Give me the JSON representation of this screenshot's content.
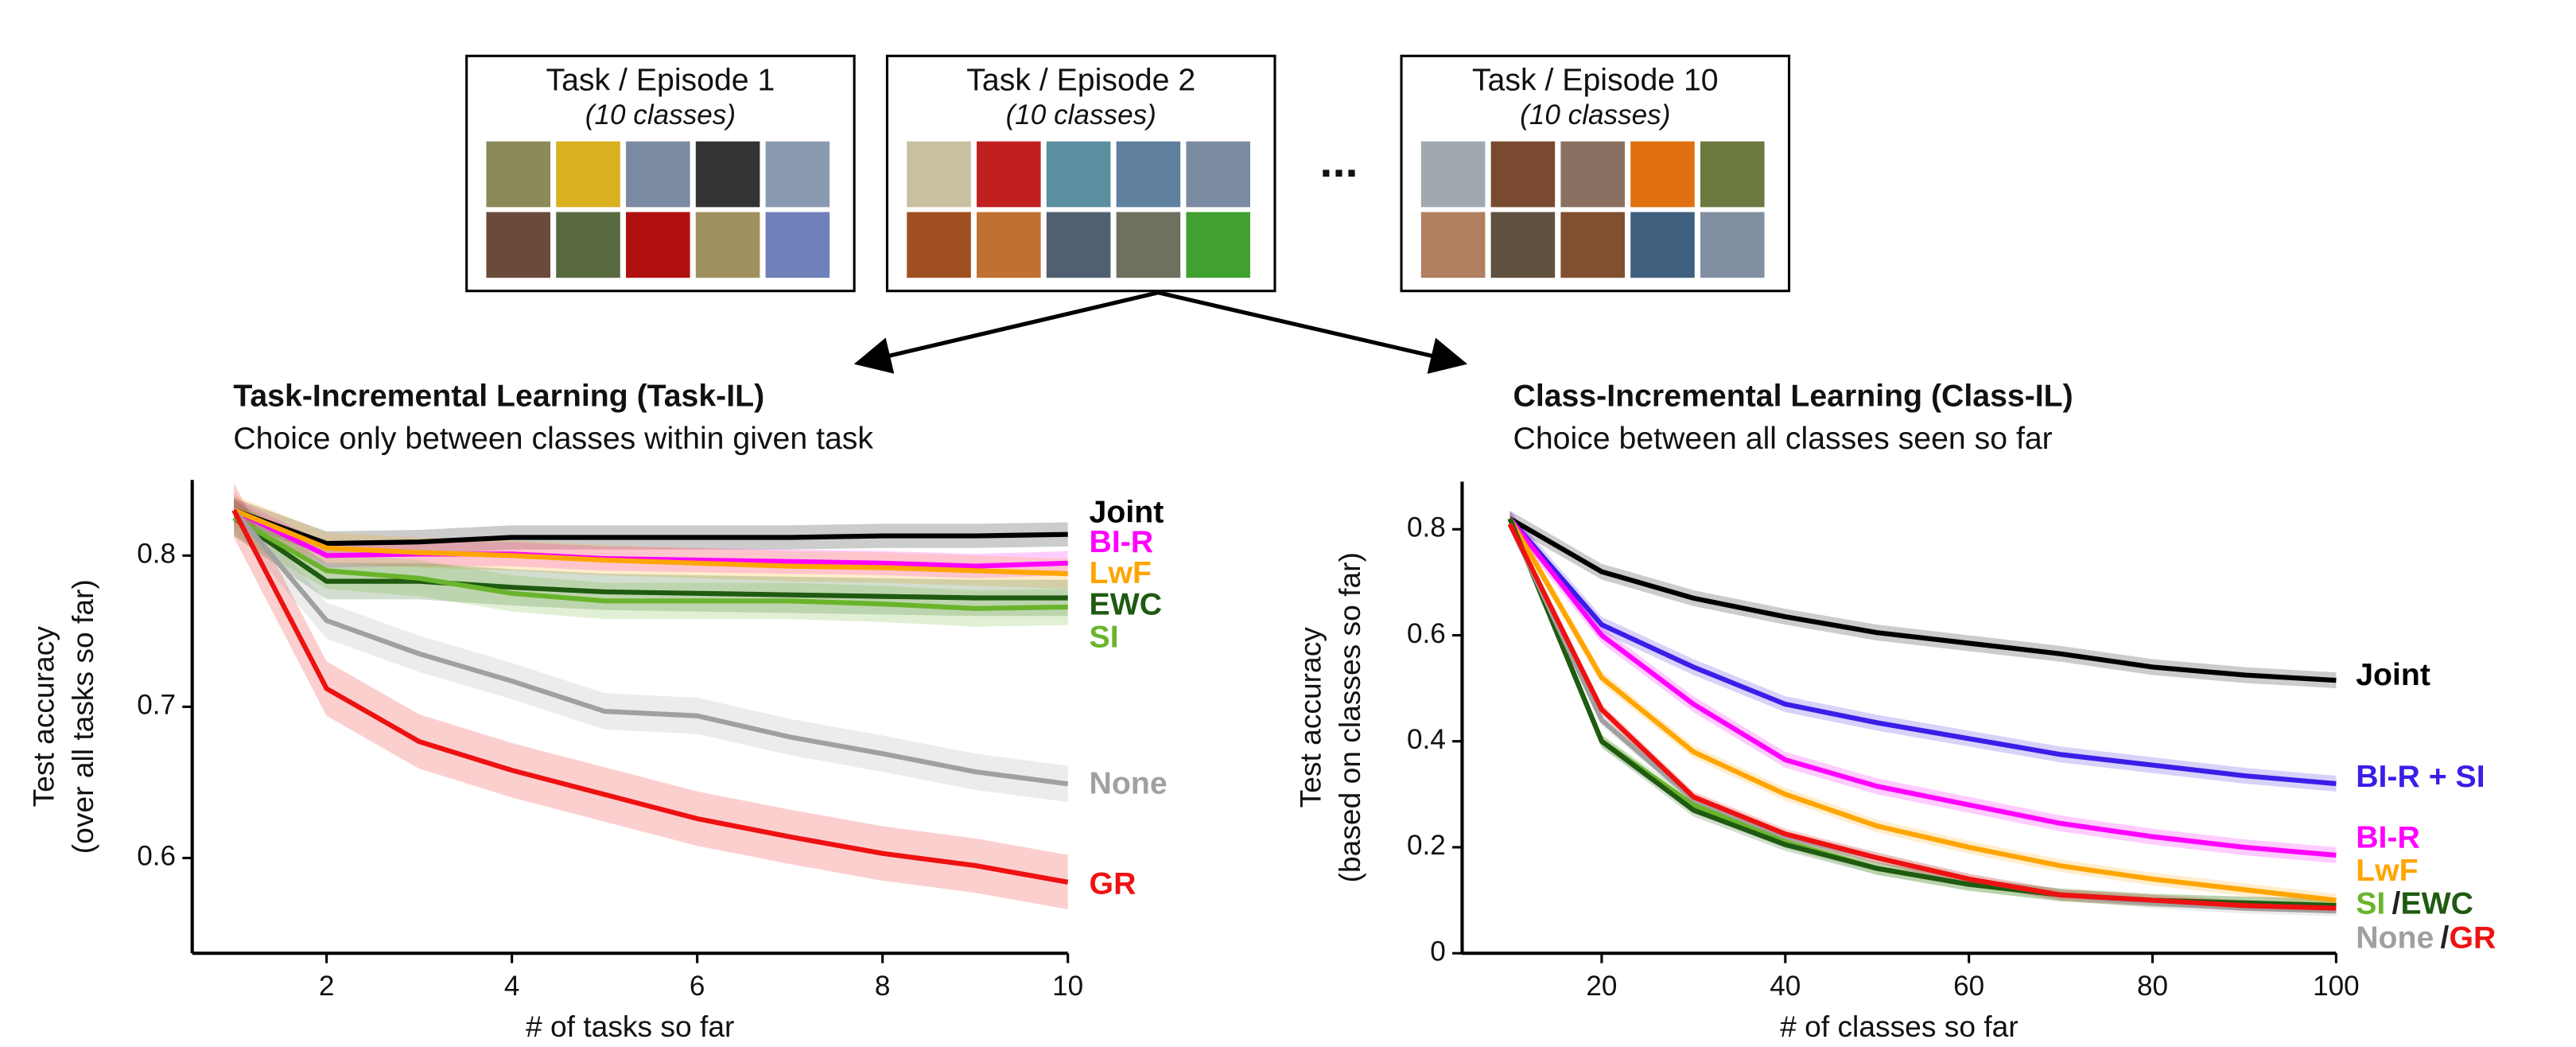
{
  "diagram": {
    "tasks": [
      {
        "title": "Task / Episode 1",
        "subtitle": "(10 classes)"
      },
      {
        "title": "Task / Episode 2",
        "subtitle": "(10 classes)"
      },
      {
        "title": "Task / Episode 10",
        "subtitle": "(10 classes)"
      }
    ],
    "ellipsis": "..."
  },
  "chart_data": [
    {
      "type": "line",
      "title": "Task-Incremental Learning (Task-IL)",
      "subtitle": "Choice only between classes within given task",
      "x_label": "# of tasks so far",
      "y_label": [
        "Test accuracy",
        "(over all tasks so far)"
      ],
      "x": [
        1,
        2,
        3,
        4,
        5,
        6,
        7,
        8,
        9,
        10
      ],
      "xlim": [
        0.55,
        10
      ],
      "ylim": [
        0.537,
        0.85
      ],
      "xticks": [
        2,
        4,
        6,
        8,
        10
      ],
      "yticks": [
        0.6,
        0.7,
        0.8
      ],
      "series": [
        {
          "name": "Joint",
          "color": "#000000",
          "error": 0.008,
          "values": [
            0.83,
            0.808,
            0.809,
            0.812,
            0.812,
            0.812,
            0.812,
            0.813,
            0.813,
            0.814
          ]
        },
        {
          "name": "BI-R",
          "color": "#ff00ff",
          "error": 0.008,
          "values": [
            0.83,
            0.8,
            0.801,
            0.801,
            0.798,
            0.797,
            0.796,
            0.795,
            0.793,
            0.795
          ]
        },
        {
          "name": "LwF",
          "color": "#ffa500",
          "error": 0.01,
          "values": [
            0.83,
            0.805,
            0.802,
            0.8,
            0.797,
            0.795,
            0.793,
            0.792,
            0.79,
            0.788
          ]
        },
        {
          "name": "EWC",
          "color": "#1e5a10",
          "error": 0.012,
          "values": [
            0.825,
            0.783,
            0.783,
            0.779,
            0.776,
            0.775,
            0.774,
            0.773,
            0.772,
            0.772
          ]
        },
        {
          "name": "SI",
          "color": "#6ab42c",
          "error": 0.012,
          "values": [
            0.825,
            0.79,
            0.785,
            0.775,
            0.77,
            0.77,
            0.77,
            0.768,
            0.765,
            0.766
          ]
        },
        {
          "name": "None",
          "color": "#a0a0a0",
          "error": 0.012,
          "values": [
            0.83,
            0.757,
            0.735,
            0.717,
            0.697,
            0.694,
            0.68,
            0.669,
            0.657,
            0.649
          ]
        },
        {
          "name": "GR",
          "color": "#ee1111",
          "error": 0.018,
          "values": [
            0.83,
            0.712,
            0.677,
            0.658,
            0.642,
            0.626,
            0.614,
            0.603,
            0.595,
            0.584
          ]
        }
      ]
    },
    {
      "type": "line",
      "title": "Class-Incremental Learning (Class-IL)",
      "subtitle": "Choice between all classes seen so far",
      "x_label": "# of classes so far",
      "y_label": [
        "Test accuracy",
        "(based on classes so far)"
      ],
      "label_separator": "/",
      "x": [
        10,
        20,
        30,
        40,
        50,
        60,
        70,
        80,
        90,
        100
      ],
      "xlim": [
        4.8,
        100
      ],
      "ylim": [
        0,
        0.89
      ],
      "xticks": [
        20,
        40,
        60,
        80,
        100
      ],
      "yticks": [
        0,
        0.2,
        0.4,
        0.6,
        0.8
      ],
      "series": [
        {
          "name": "Joint",
          "color": "#000000",
          "error": 0.015,
          "values": [
            0.82,
            0.72,
            0.67,
            0.635,
            0.605,
            0.585,
            0.565,
            0.54,
            0.525,
            0.515
          ]
        },
        {
          "name": "BI-R + SI",
          "color": "#3a1ee8",
          "error": 0.015,
          "values": [
            0.82,
            0.62,
            0.54,
            0.47,
            0.435,
            0.405,
            0.375,
            0.355,
            0.335,
            0.32
          ]
        },
        {
          "name": "BI-R",
          "color": "#ff00ff",
          "error": 0.015,
          "values": [
            0.82,
            0.6,
            0.47,
            0.365,
            0.315,
            0.28,
            0.245,
            0.22,
            0.2,
            0.185
          ]
        },
        {
          "name": "LwF",
          "color": "#ffa500",
          "error": 0.012,
          "values": [
            0.82,
            0.52,
            0.38,
            0.3,
            0.24,
            0.2,
            0.165,
            0.14,
            0.12,
            0.1
          ]
        },
        {
          "name": "SI",
          "color": "#6ab42c",
          "error": 0.012,
          "values": [
            0.82,
            0.4,
            0.28,
            0.21,
            0.16,
            0.13,
            0.11,
            0.1,
            0.095,
            0.09
          ]
        },
        {
          "name": "EWC",
          "color": "#1e5a10",
          "error": 0.012,
          "values": [
            0.82,
            0.4,
            0.27,
            0.205,
            0.16,
            0.13,
            0.11,
            0.1,
            0.095,
            0.09
          ]
        },
        {
          "name": "None",
          "color": "#a0a0a0",
          "error": 0.01,
          "values": [
            0.81,
            0.44,
            0.29,
            0.22,
            0.18,
            0.14,
            0.11,
            0.095,
            0.085,
            0.08
          ]
        },
        {
          "name": "GR",
          "color": "#ee1111",
          "error": 0.01,
          "values": [
            0.81,
            0.46,
            0.295,
            0.225,
            0.18,
            0.14,
            0.11,
            0.1,
            0.09,
            0.085
          ]
        }
      ]
    }
  ]
}
